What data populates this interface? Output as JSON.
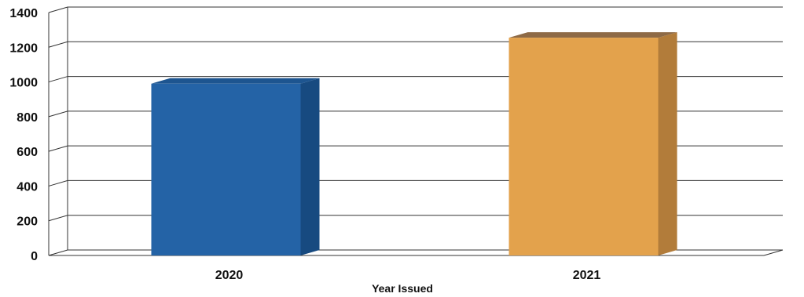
{
  "chart_data": {
    "type": "bar",
    "categories": [
      "2020",
      "2021"
    ],
    "values": [
      990,
      1255
    ],
    "colors": [
      "#2463a6",
      "#e3a24c"
    ],
    "side_colors": [
      "#174a80",
      "#b27c3a"
    ],
    "top_colors": [
      "#1d5590",
      "#8e6a46"
    ],
    "xlabel": "Year Issued",
    "ylabel": "",
    "ylim": [
      0,
      1400
    ],
    "yticks": [
      0,
      200,
      400,
      600,
      800,
      1000,
      1200,
      1400
    ],
    "grid": true,
    "legend": "none",
    "style": "3d"
  }
}
